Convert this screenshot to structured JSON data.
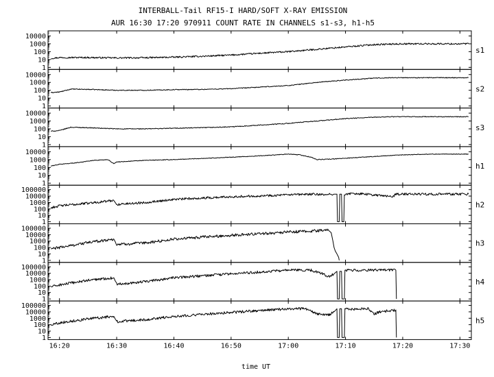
{
  "title": "INTERBALL-Tail RF15-I HARD/SOFT X-RAY EMISSION",
  "subtitle": "AUR 16:30 17:20 970911  COUNT RATE IN CHANNELS s1-s3, h1-h5",
  "chart_data": {
    "type": "line",
    "title": "INTERBALL-Tail RF15-I HARD/SOFT X-RAY EMISSION",
    "subtitle": "AUR 16:30 17:20 970911  COUNT RATE IN CHANNELS s1-s3, h1-h5",
    "xlabel": "time UT",
    "x_ticks": [
      "16:20",
      "16:30",
      "16:40",
      "16:50",
      "17:00",
      "17:10",
      "17:20",
      "17:30"
    ],
    "x_tick_minutes": [
      0,
      10,
      20,
      30,
      40,
      50,
      60,
      70
    ],
    "xlim_minutes": [
      -2,
      72
    ],
    "yscale": "log",
    "grid": false,
    "panels": [
      {
        "channel": "s1",
        "ylim": [
          1,
          30000
        ],
        "y_ticks": [
          "10000",
          "1000",
          "100",
          "10",
          "1"
        ],
        "y_tick_values": [
          10000,
          1000,
          100,
          10,
          1
        ],
        "noise_decades": 0.1,
        "series": [
          {
            "x": [
              -1.5,
              0,
              5,
              10,
              15,
              20,
              25,
              30,
              35,
              40,
              45,
              50,
              55,
              60,
              65,
              71.5
            ],
            "y": [
              14,
              18,
              18,
              16,
              17,
              20,
              26,
              37,
              63,
              100,
              200,
              400,
              800,
              1000,
              1000,
              1000
            ]
          }
        ]
      },
      {
        "channel": "s2",
        "ylim": [
          1,
          30000
        ],
        "y_ticks": [
          "10000",
          "1000",
          "100",
          "10",
          "1"
        ],
        "y_tick_values": [
          10000,
          1000,
          100,
          10,
          1
        ],
        "noise_decades": 0.05,
        "series": [
          {
            "x": [
              -1.5,
              0,
              1,
              2,
              5,
              10,
              15,
              20,
              25,
              30,
              35,
              40,
              45,
              50,
              55,
              58,
              62,
              66,
              71.5
            ],
            "y": [
              50,
              60,
              90,
              140,
              130,
              100,
              100,
              120,
              130,
              160,
              250,
              400,
              1000,
              2000,
              3500,
              4000,
              4000,
              4000,
              4000
            ]
          }
        ]
      },
      {
        "channel": "s3",
        "ylim": [
          1,
          30000
        ],
        "y_ticks": [
          "10000",
          "1000",
          "100",
          "10",
          "1"
        ],
        "y_tick_values": [
          10000,
          1000,
          100,
          10,
          1
        ],
        "noise_decades": 0.05,
        "series": [
          {
            "x": [
              -1.5,
              0,
              1,
              2,
              5,
              10,
              15,
              20,
              25,
              30,
              35,
              40,
              45,
              50,
              55,
              58,
              62,
              66,
              71.5
            ],
            "y": [
              50,
              60,
              100,
              160,
              140,
              100,
              100,
              120,
              140,
              180,
              300,
              500,
              1000,
              2000,
              3000,
              3500,
              3500,
              3500,
              3500
            ]
          }
        ]
      },
      {
        "channel": "h1",
        "ylim": [
          1,
          30000
        ],
        "y_ticks": [
          "10000",
          "1000",
          "100",
          "10",
          "1"
        ],
        "y_tick_values": [
          10000,
          1000,
          100,
          10,
          1
        ],
        "noise_decades": 0.04,
        "series": [
          {
            "x": [
              -1.5,
              0,
              3,
              6,
              8.5,
              9.5,
              10,
              15,
              20,
              30,
              35,
              38,
              40,
              42,
              44,
              45,
              48,
              50,
              55,
              60,
              65,
              71.5
            ],
            "y": [
              150,
              250,
              400,
              800,
              1000,
              300,
              500,
              800,
              1000,
              2000,
              3000,
              4000,
              5000,
              4000,
              2000,
              1000,
              1200,
              1500,
              2500,
              4000,
              5000,
              5000
            ]
          }
        ]
      },
      {
        "channel": "h2",
        "ylim": [
          1,
          300000
        ],
        "y_ticks": [
          "100000",
          "10000",
          "1000",
          "100",
          "10",
          "1"
        ],
        "y_tick_values": [
          100000,
          10000,
          1000,
          100,
          10,
          1
        ],
        "noise_decades": 0.18,
        "series": [
          {
            "x": [
              -1.5,
              0,
              5,
              9.5,
              10,
              15,
              20,
              30,
              40,
              45,
              46,
              48,
              48.5,
              48.6,
              48.9,
              49.0,
              49.3,
              49.4,
              49.7,
              49.8,
              52,
              55,
              58.5,
              58.6,
              60,
              65,
              71.5
            ],
            "y": [
              150,
              300,
              800,
              2000,
              500,
              1000,
              3000,
              8000,
              15000,
              20000,
              15000,
              20000,
              20000,
              1,
              1,
              20000,
              20000,
              1,
              1,
              20000,
              25000,
              15000,
              8000,
              20000,
              20000,
              20000,
              20000
            ]
          }
        ]
      },
      {
        "channel": "h3",
        "ylim": [
          1,
          300000
        ],
        "y_ticks": [
          "100000",
          "10000",
          "1000",
          "100",
          "10",
          "1"
        ],
        "y_tick_values": [
          100000,
          10000,
          1000,
          100,
          10,
          1
        ],
        "noise_decades": 0.22,
        "series": [
          {
            "x": [
              -1.5,
              0,
              5,
              9.5,
              10,
              15,
              20,
              30,
              40,
              45,
              46,
              47,
              47.5,
              47.8,
              48.0,
              48.2,
              48.5,
              48.8,
              48.9
            ],
            "y": [
              60,
              100,
              600,
              2000,
              300,
              500,
              2000,
              8000,
              25000,
              40000,
              50000,
              50000,
              20000,
              1000,
              100,
              30,
              10,
              3,
              1
            ]
          }
        ]
      },
      {
        "channel": "h4",
        "ylim": [
          1,
          300000
        ],
        "y_ticks": [
          "100000",
          "10000",
          "1000",
          "100",
          "10",
          "1"
        ],
        "y_tick_values": [
          100000,
          10000,
          1000,
          100,
          10,
          1
        ],
        "noise_decades": 0.2,
        "series": [
          {
            "x": [
              -1.5,
              0,
              5,
              9.5,
              10,
              15,
              20,
              30,
              40,
              44,
              46,
              47,
              48,
              48.5,
              48.6,
              48.9,
              49.0,
              49.3,
              49.4,
              49.8,
              49.9,
              58.8,
              58.9
            ],
            "y": [
              80,
              150,
              800,
              2000,
              200,
              500,
              2000,
              8000,
              30000,
              30000,
              8000,
              3000,
              8000,
              20000,
              1,
              1,
              20000,
              20000,
              1,
              1,
              30000,
              30000,
              1
            ]
          }
        ]
      },
      {
        "channel": "h5",
        "ylim": [
          1,
          300000
        ],
        "y_ticks": [
          "100000",
          "10000",
          "1000",
          "100",
          "10",
          "1"
        ],
        "y_tick_values": [
          100000,
          10000,
          1000,
          100,
          10,
          1
        ],
        "noise_decades": 0.2,
        "series": [
          {
            "x": [
              -1.5,
              0,
              5,
              9.5,
              10,
              15,
              20,
              30,
              40,
              43,
              45,
              47,
              48,
              48.5,
              48.6,
              48.9,
              49.0,
              49.3,
              49.4,
              49.8,
              49.9,
              52,
              54,
              55,
              56,
              58.8,
              58.9
            ],
            "y": [
              100,
              200,
              800,
              2000,
              300,
              600,
              2000,
              8000,
              30000,
              30000,
              5000,
              3000,
              10000,
              30000,
              1,
              1,
              30000,
              30000,
              1,
              1,
              30000,
              25000,
              30000,
              5000,
              10000,
              20000,
              1
            ]
          }
        ]
      }
    ]
  }
}
